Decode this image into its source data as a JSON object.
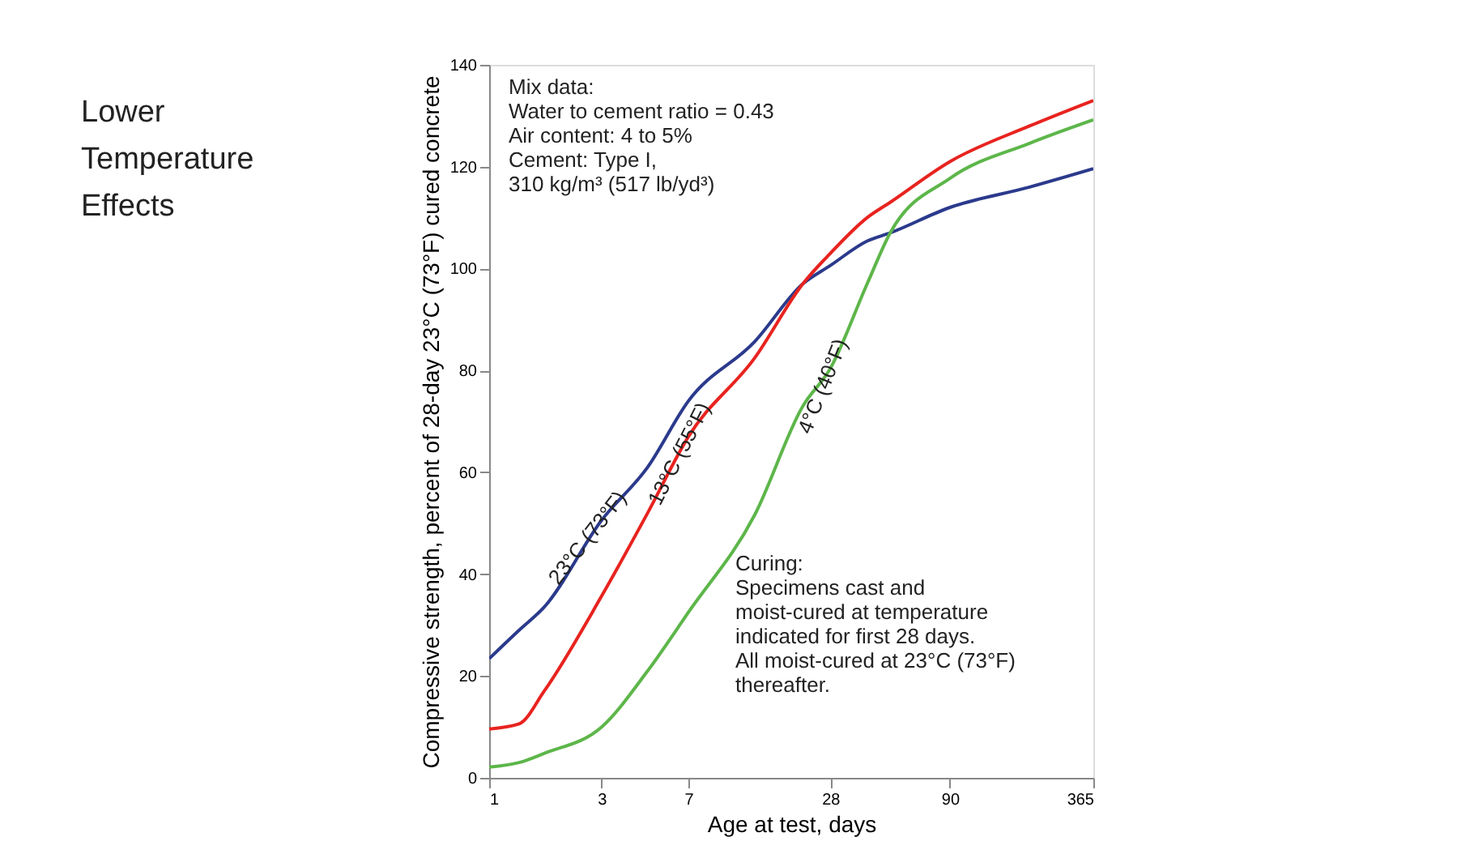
{
  "chart_data": {
    "type": "line",
    "title": "Lower Temperature Effects",
    "xlabel": "Age at test, days",
    "ylabel": "Compressive strength, percent of 28-day 23°C (73°F) cured concrete",
    "log": "x",
    "xlim": [
      1,
      365
    ],
    "xticks": [
      1,
      3,
      7,
      28,
      90,
      365
    ],
    "ylim": [
      0,
      140
    ],
    "yticks": [
      0,
      20,
      40,
      60,
      80,
      100,
      120,
      140
    ],
    "grid": false,
    "x": [
      1,
      1.34,
      1.71,
      3,
      4.7,
      7,
      13.4,
      21.4,
      28,
      40.1,
      50.2,
      90,
      196,
      365
    ],
    "series": [
      {
        "name": "23°C (73°F)",
        "color": "#2b3a8c",
        "values": [
          23.4,
          29,
          33.5,
          50.6,
          61,
          74,
          85.7,
          97,
          100.6,
          105.4,
          107,
          112,
          116,
          119.6
        ]
      },
      {
        "name": "13°C (55°F)",
        "color": "#e8231f",
        "values": [
          9.6,
          10.6,
          17,
          35.7,
          52,
          67,
          82.5,
          97,
          103,
          110,
          113,
          121,
          128,
          133
        ]
      },
      {
        "name": "4°C (40°F)",
        "color": "#5db64a",
        "values": [
          2.1,
          3,
          4.8,
          10,
          21,
          32.5,
          51.7,
          73,
          80.4,
          97,
          107,
          117.7,
          124.6,
          129.2
        ]
      }
    ],
    "annotations": [
      "Mix data:\nWater to cement ratio = 0.43\nAir content: 4 to 5%\nCement: Type I,\n310 kg/m³ (517 lb/yd³)",
      "Curing:\nSpecimens cast and\nmoist-cured at temperature\nindicated for first 28 days.\nAll moist-cured at 23°C (73°F)\nthereafter."
    ]
  }
}
